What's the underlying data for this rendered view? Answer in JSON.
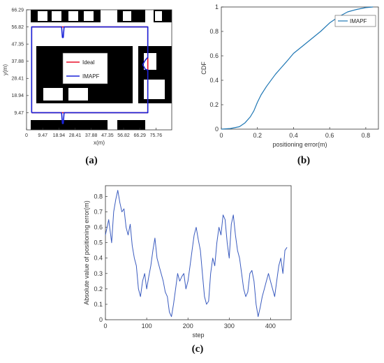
{
  "captions": {
    "a": "(a)",
    "b": "(b)",
    "c": "(c)"
  },
  "chart_data": [
    {
      "id": "a",
      "type": "line",
      "xlabel": "x(m)",
      "ylabel": "y(m)",
      "xticks": [
        "0",
        "9.47",
        "18.94",
        "28.41",
        "37.88",
        "47.35",
        "56.82",
        "66.29",
        "75.76"
      ],
      "yticks": [
        "9.47",
        "18.94",
        "28.41",
        "37.88",
        "47.35",
        "56.82",
        "66.29"
      ],
      "xlim": [
        0,
        85
      ],
      "ylim": [
        0,
        66.29
      ],
      "legend_position": "center",
      "series": [
        {
          "name": "Ideal",
          "color": "#e8102a",
          "x": [
            3,
            3,
            71,
            71,
            3
          ],
          "y": [
            9.47,
            56.82,
            56.82,
            9.47,
            9.47
          ]
        },
        {
          "name": "IMAPF",
          "color": "#1a22d8",
          "x": [
            3,
            3,
            20.5,
            21,
            21.5,
            22,
            71,
            71,
            69.5,
            68,
            69.5,
            71,
            71,
            22,
            21.5,
            21,
            20.5,
            3
          ],
          "y": [
            9.47,
            56.82,
            56.82,
            51,
            51,
            56.82,
            56.82,
            40,
            38.5,
            36,
            33.5,
            33,
            9.47,
            9.47,
            3.5,
            3.5,
            9.47,
            9.47
          ]
        }
      ]
    },
    {
      "id": "b",
      "type": "line",
      "xlabel": "positioning error(m)",
      "ylabel": "CDF",
      "xticks": [
        "0",
        "0.2",
        "0.4",
        "0.6",
        "0.8"
      ],
      "yticks": [
        "0",
        "0.2",
        "0.4",
        "0.6",
        "0.8",
        "1"
      ],
      "xlim": [
        0,
        0.87
      ],
      "ylim": [
        0,
        1
      ],
      "legend_position": "top-right",
      "series": [
        {
          "name": "IMAPF",
          "color": "#1f77b4",
          "x": [
            0,
            0.05,
            0.1,
            0.13,
            0.16,
            0.18,
            0.2,
            0.22,
            0.25,
            0.28,
            0.3,
            0.33,
            0.36,
            0.4,
            0.45,
            0.5,
            0.55,
            0.6,
            0.65,
            0.7,
            0.75,
            0.8,
            0.84
          ],
          "y": [
            0,
            0.005,
            0.02,
            0.05,
            0.1,
            0.15,
            0.22,
            0.28,
            0.35,
            0.41,
            0.45,
            0.5,
            0.55,
            0.62,
            0.68,
            0.74,
            0.8,
            0.87,
            0.92,
            0.96,
            0.98,
            0.995,
            1.0
          ]
        }
      ]
    },
    {
      "id": "c",
      "type": "line",
      "xlabel": "step",
      "ylabel": "Absolute value of positioning error(m)",
      "xticks": [
        "0",
        "100",
        "200",
        "300",
        "400"
      ],
      "yticks": [
        "0",
        "0.1",
        "0.2",
        "0.3",
        "0.4",
        "0.5",
        "0.6",
        "0.7",
        "0.8"
      ],
      "xlim": [
        0,
        450
      ],
      "ylim": [
        0,
        0.87
      ],
      "series": [
        {
          "name": "",
          "color": "#3a5bbf",
          "x": [
            0,
            8,
            15,
            20,
            25,
            30,
            35,
            40,
            45,
            50,
            55,
            60,
            65,
            70,
            75,
            80,
            85,
            90,
            95,
            100,
            105,
            110,
            115,
            120,
            125,
            130,
            135,
            140,
            145,
            150,
            155,
            160,
            165,
            170,
            175,
            180,
            185,
            190,
            195,
            200,
            205,
            210,
            215,
            220,
            225,
            230,
            235,
            240,
            245,
            250,
            255,
            260,
            265,
            270,
            275,
            280,
            285,
            290,
            295,
            300,
            305,
            310,
            315,
            320,
            325,
            330,
            335,
            340,
            345,
            350,
            355,
            360,
            365,
            370,
            375,
            380,
            385,
            390,
            395,
            400,
            405,
            410,
            415,
            420,
            425,
            430,
            435,
            440
          ],
          "y": [
            0.55,
            0.65,
            0.5,
            0.7,
            0.78,
            0.84,
            0.76,
            0.7,
            0.72,
            0.6,
            0.55,
            0.62,
            0.48,
            0.4,
            0.35,
            0.2,
            0.15,
            0.25,
            0.3,
            0.2,
            0.28,
            0.35,
            0.45,
            0.53,
            0.4,
            0.35,
            0.3,
            0.25,
            0.18,
            0.15,
            0.05,
            0.02,
            0.1,
            0.2,
            0.3,
            0.25,
            0.28,
            0.3,
            0.2,
            0.25,
            0.35,
            0.45,
            0.55,
            0.6,
            0.52,
            0.45,
            0.3,
            0.15,
            0.1,
            0.12,
            0.3,
            0.4,
            0.35,
            0.5,
            0.6,
            0.55,
            0.68,
            0.65,
            0.5,
            0.4,
            0.62,
            0.68,
            0.55,
            0.45,
            0.4,
            0.3,
            0.2,
            0.15,
            0.18,
            0.3,
            0.32,
            0.25,
            0.1,
            0.02,
            0.08,
            0.15,
            0.2,
            0.25,
            0.3,
            0.25,
            0.2,
            0.15,
            0.25,
            0.35,
            0.4,
            0.3,
            0.45,
            0.47
          ]
        }
      ]
    }
  ]
}
